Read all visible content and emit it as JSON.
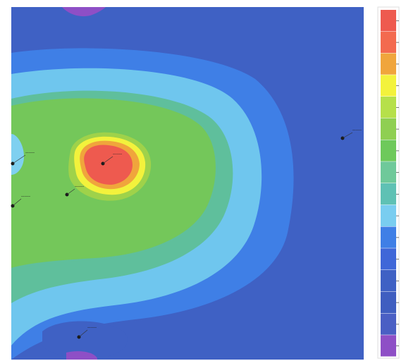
{
  "map": {
    "background": "#3f61c4",
    "zone_colors": {
      "deep_blue": "#3f61c4",
      "blue": "#3f7fe6",
      "light_blue": "#6fc6ee",
      "teal": "#5fbf9c",
      "green": "#74c75a",
      "light_green": "#9fd24a",
      "yellow": "#f3f23c",
      "orange": "#f0a53c",
      "red": "#ee5a4f",
      "purple": "#8e4fc6"
    }
  },
  "markers": [
    {
      "name": "marker-peak",
      "label": "------"
    },
    {
      "name": "marker-near-peak",
      "label": "------"
    },
    {
      "name": "marker-left-upper",
      "label": "------"
    },
    {
      "name": "marker-left-lower",
      "label": "------"
    },
    {
      "name": "marker-right",
      "label": "------"
    },
    {
      "name": "marker-bottom",
      "label": "------"
    }
  ],
  "legend": {
    "colors": [
      "#ee5a4f",
      "#f36a4f",
      "#f0a53c",
      "#f3f23c",
      "#b6e04a",
      "#8fcf52",
      "#6ec95b",
      "#6fc99a",
      "#5fc1b4",
      "#79cdf0",
      "#3f7fe6",
      "#3f67d8",
      "#3f61c4",
      "#3f5ec0",
      "#4a5fc4",
      "#8e4fc6"
    ]
  }
}
